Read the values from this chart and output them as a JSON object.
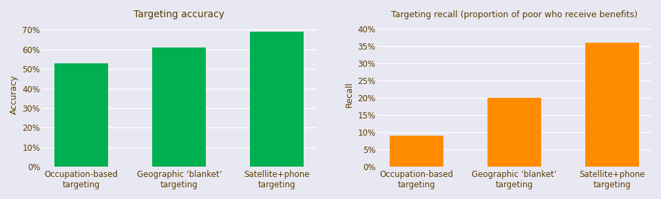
{
  "left_title": "Targeting accuracy",
  "right_title": "Targeting recall (proportion of poor who receive benefits)",
  "categories": [
    "Occupation-based\ntargeting",
    "Geographic ‘blanket’\ntargeting",
    "Satellite+phone\ntargeting"
  ],
  "accuracy_values": [
    0.53,
    0.61,
    0.69
  ],
  "recall_values": [
    0.09,
    0.2,
    0.36
  ],
  "accuracy_color": "#00b050",
  "recall_color": "#ff8c00",
  "left_ylabel": "Accuracy",
  "right_ylabel": "Recall",
  "left_ylim": [
    0,
    0.74
  ],
  "right_ylim": [
    0,
    0.42
  ],
  "left_yticks": [
    0.0,
    0.1,
    0.2,
    0.3,
    0.4,
    0.5,
    0.6,
    0.7
  ],
  "right_yticks": [
    0.0,
    0.05,
    0.1,
    0.15,
    0.2,
    0.25,
    0.3,
    0.35,
    0.4
  ],
  "bg_color": "#e8e8f2",
  "title_color": "#5c3d00",
  "label_color": "#5c3d00",
  "tick_color": "#5c3d00"
}
